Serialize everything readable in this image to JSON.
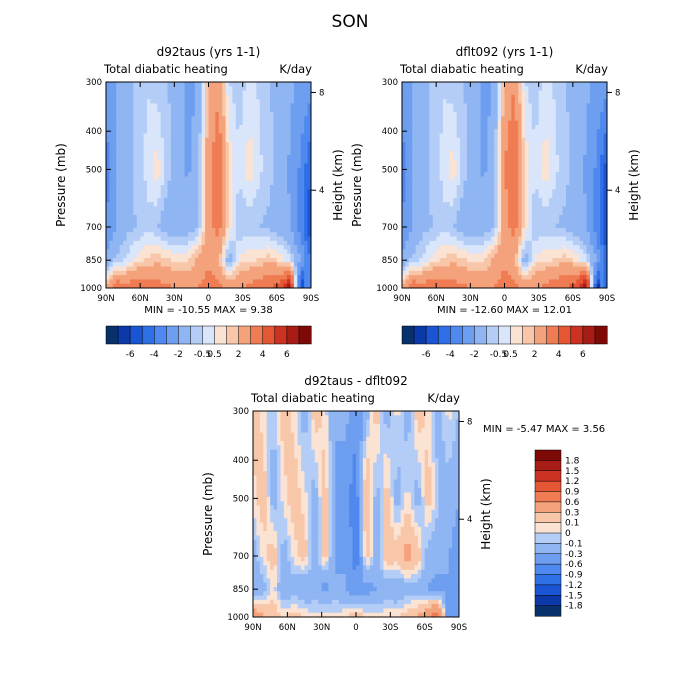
{
  "figure_title": "SON",
  "colors": {
    "cool": [
      "#08306b",
      "#0b3aa8",
      "#1a55d6",
      "#2f6fe6",
      "#4f88ee",
      "#6d9ef0",
      "#8fb5f3",
      "#b3cdf7",
      "#d8e5fa"
    ],
    "warm": [
      "#fbe3d4",
      "#f8c6a8",
      "#f4a27b",
      "#ef7c52",
      "#e55634",
      "#cc3222",
      "#a71c14",
      "#7e0a08"
    ]
  },
  "chart_data": [
    {
      "type": "heatmap",
      "title": "d92taus (yrs 1-1)",
      "subtitle": "Total diabatic heating",
      "units": "K/day",
      "ylabel": "Pressure (mb)",
      "y2label": "Height (km)",
      "x_ticks": [
        "90N",
        "60N",
        "30N",
        "0",
        "30S",
        "60S",
        "90S"
      ],
      "y_ticks": [
        "300",
        "400",
        "500",
        "700",
        "850",
        "1000"
      ],
      "y2_ticks": [
        "8",
        "4"
      ],
      "stats": "MIN = -10.55   MAX =   9.38",
      "colorbar_labels": [
        "-6",
        "-4",
        "-2",
        "-0.5",
        "0.5",
        "2",
        "4",
        "6"
      ],
      "approx_field_rows": [
        {
          "p": 300,
          "v": [
            -2.5,
            -2,
            -1.2,
            -0.8,
            -0.5,
            -0.8,
            -1,
            -1.2,
            -2.5,
            -1.8,
            1,
            1.8,
            -0.5,
            -0.8,
            -0.3,
            -0.6,
            -1,
            -1.4,
            -1.8,
            -2.2,
            -2.5
          ]
        },
        {
          "p": 500,
          "v": [
            -3.5,
            -2,
            -1.2,
            -0.8,
            -0.4,
            0.3,
            -0.8,
            -1.3,
            -2.2,
            -1.3,
            1.8,
            2.8,
            0.4,
            -0.4,
            0.3,
            -0.4,
            -0.8,
            -1.3,
            -2.2,
            -3.2,
            -5
          ]
        },
        {
          "p": 700,
          "v": [
            -3,
            -2,
            -1.2,
            -1,
            -0.6,
            -1,
            -1.5,
            -1.8,
            -1.5,
            -1,
            1.5,
            2.5,
            0.2,
            -1,
            -0.8,
            -1,
            -1.2,
            -1.6,
            -2,
            -3.5,
            -6
          ]
        },
        {
          "p": 850,
          "v": [
            -1.8,
            -0.8,
            -0.4,
            0.2,
            0.6,
            0.8,
            0.6,
            0.4,
            0.4,
            1.2,
            1.8,
            1.2,
            -1.5,
            0.2,
            0.4,
            0.6,
            0.8,
            0.4,
            -0.4,
            -2,
            -4
          ]
        },
        {
          "p": 1000,
          "v": [
            1.5,
            3,
            2.5,
            2.8,
            2.8,
            2.5,
            2.2,
            2,
            1.8,
            2,
            2.5,
            2.2,
            2,
            2,
            2.2,
            2.8,
            3,
            3.5,
            6,
            -6,
            null
          ]
        }
      ]
    },
    {
      "type": "heatmap",
      "title": "dflt092 (yrs 1-1)",
      "subtitle": "Total diabatic heating",
      "units": "K/day",
      "ylabel": "Pressure (mb)",
      "y2label": "Height (km)",
      "x_ticks": [
        "90N",
        "60N",
        "30N",
        "0",
        "30S",
        "60S",
        "90S"
      ],
      "y_ticks": [
        "300",
        "400",
        "500",
        "700",
        "850",
        "1000"
      ],
      "y2_ticks": [
        "8",
        "4"
      ],
      "stats": "MIN = -12.60   MAX =  12.01",
      "colorbar_labels": [
        "-6",
        "-4",
        "-2",
        "-0.5",
        "0.5",
        "2",
        "4",
        "6"
      ],
      "approx_field_rows": [
        {
          "p": 300,
          "v": [
            -2.5,
            -2,
            -1.2,
            -0.8,
            -0.5,
            -0.8,
            -1,
            -1.2,
            -2.5,
            -1.8,
            1.2,
            2,
            -0.5,
            -0.8,
            -0.3,
            -0.6,
            -1,
            -1.4,
            -1.8,
            -2.2,
            -2.5
          ]
        },
        {
          "p": 500,
          "v": [
            -3.5,
            -2,
            -1.2,
            -0.8,
            -0.4,
            0.3,
            -0.8,
            -1.3,
            -2.2,
            -1.3,
            2,
            3,
            0.4,
            -0.4,
            0.3,
            -0.4,
            -0.8,
            -1.3,
            -2.2,
            -3.2,
            -5.5
          ]
        },
        {
          "p": 700,
          "v": [
            -3,
            -2,
            -1.2,
            -1,
            -0.6,
            -1,
            -1.5,
            -1.8,
            -1.5,
            -1,
            1.5,
            2.5,
            0.2,
            -1,
            -0.8,
            -1,
            -1.2,
            -1.6,
            -2,
            -3.5,
            -6.5
          ]
        },
        {
          "p": 850,
          "v": [
            -1.8,
            -0.8,
            -0.4,
            0.2,
            0.6,
            0.8,
            0.6,
            0.4,
            0.4,
            1.2,
            1.8,
            1.2,
            -1.5,
            0.2,
            0.4,
            0.6,
            0.8,
            0.4,
            -0.4,
            -2,
            -4.5
          ]
        },
        {
          "p": 1000,
          "v": [
            1.5,
            3,
            2.5,
            2.8,
            2.8,
            2.5,
            2.2,
            2,
            1.8,
            2,
            2.5,
            2.2,
            2,
            2,
            2.2,
            2.8,
            3,
            3.5,
            6.5,
            -6.5,
            null
          ]
        }
      ]
    },
    {
      "type": "heatmap",
      "title": "d92taus - dflt092",
      "subtitle": "Total diabatic heating",
      "units": "K/day",
      "ylabel": "Pressure (mb)",
      "y2label": "Height (km)",
      "x_ticks": [
        "90N",
        "60N",
        "30N",
        "0",
        "30S",
        "60S",
        "90S"
      ],
      "y_ticks": [
        "300",
        "400",
        "500",
        "700",
        "850",
        "1000"
      ],
      "y2_ticks": [
        "8",
        "4"
      ],
      "stats": "MIN =   -5.47   MAX =   3.56",
      "colorbar_labels": [
        "1.8",
        "1.5",
        "1.2",
        "0.9",
        "0.6",
        "0.3",
        "0.1",
        "0",
        "-0.1",
        "-0.3",
        "-0.6",
        "-0.9",
        "-1.2",
        "-1.5",
        "-1.8"
      ],
      "approx_field_rows": [
        {
          "p": 300,
          "v": [
            0.2,
            0.05,
            -0.1,
            0.2,
            0.05,
            -0.2,
            0.2,
            0.05,
            -0.3,
            -0.2,
            -0.5,
            -0.2,
            0.2,
            -0.2,
            0.05,
            -0.2,
            0.2,
            0.05,
            -0.2,
            0.05,
            -0.1
          ]
        },
        {
          "p": 500,
          "v": [
            0.05,
            0.2,
            -0.2,
            0.05,
            0.2,
            0.05,
            -0.2,
            0.2,
            -0.3,
            -0.5,
            -0.8,
            0.4,
            -0.2,
            0.2,
            -0.2,
            0.05,
            -0.2,
            0.2,
            -0.1,
            -0.2,
            -0.3
          ]
        },
        {
          "p": 700,
          "v": [
            -0.2,
            0.05,
            0.2,
            -0.2,
            0.05,
            0.2,
            -0.2,
            0.2,
            -0.4,
            -0.3,
            -0.8,
            0.2,
            -0.2,
            0.2,
            0.2,
            0.4,
            0.2,
            -0.2,
            -0.2,
            -0.3,
            -0.4
          ]
        },
        {
          "p": 850,
          "v": [
            -0.3,
            -0.2,
            0.05,
            -0.3,
            -0.2,
            -0.3,
            -0.2,
            -0.4,
            -0.2,
            -0.3,
            -0.5,
            -0.4,
            -0.3,
            -0.2,
            -0.3,
            -0.2,
            -0.2,
            -0.3,
            -0.4,
            -0.3,
            -0.5
          ]
        },
        {
          "p": 1000,
          "v": [
            0.6,
            0.3,
            0.2,
            0.1,
            0.2,
            0.1,
            0.05,
            0.1,
            0.05,
            0.1,
            0.2,
            0.1,
            0.05,
            0.1,
            0.1,
            0.2,
            0.3,
            0.6,
            0.9,
            -0.6,
            null
          ]
        }
      ]
    }
  ]
}
